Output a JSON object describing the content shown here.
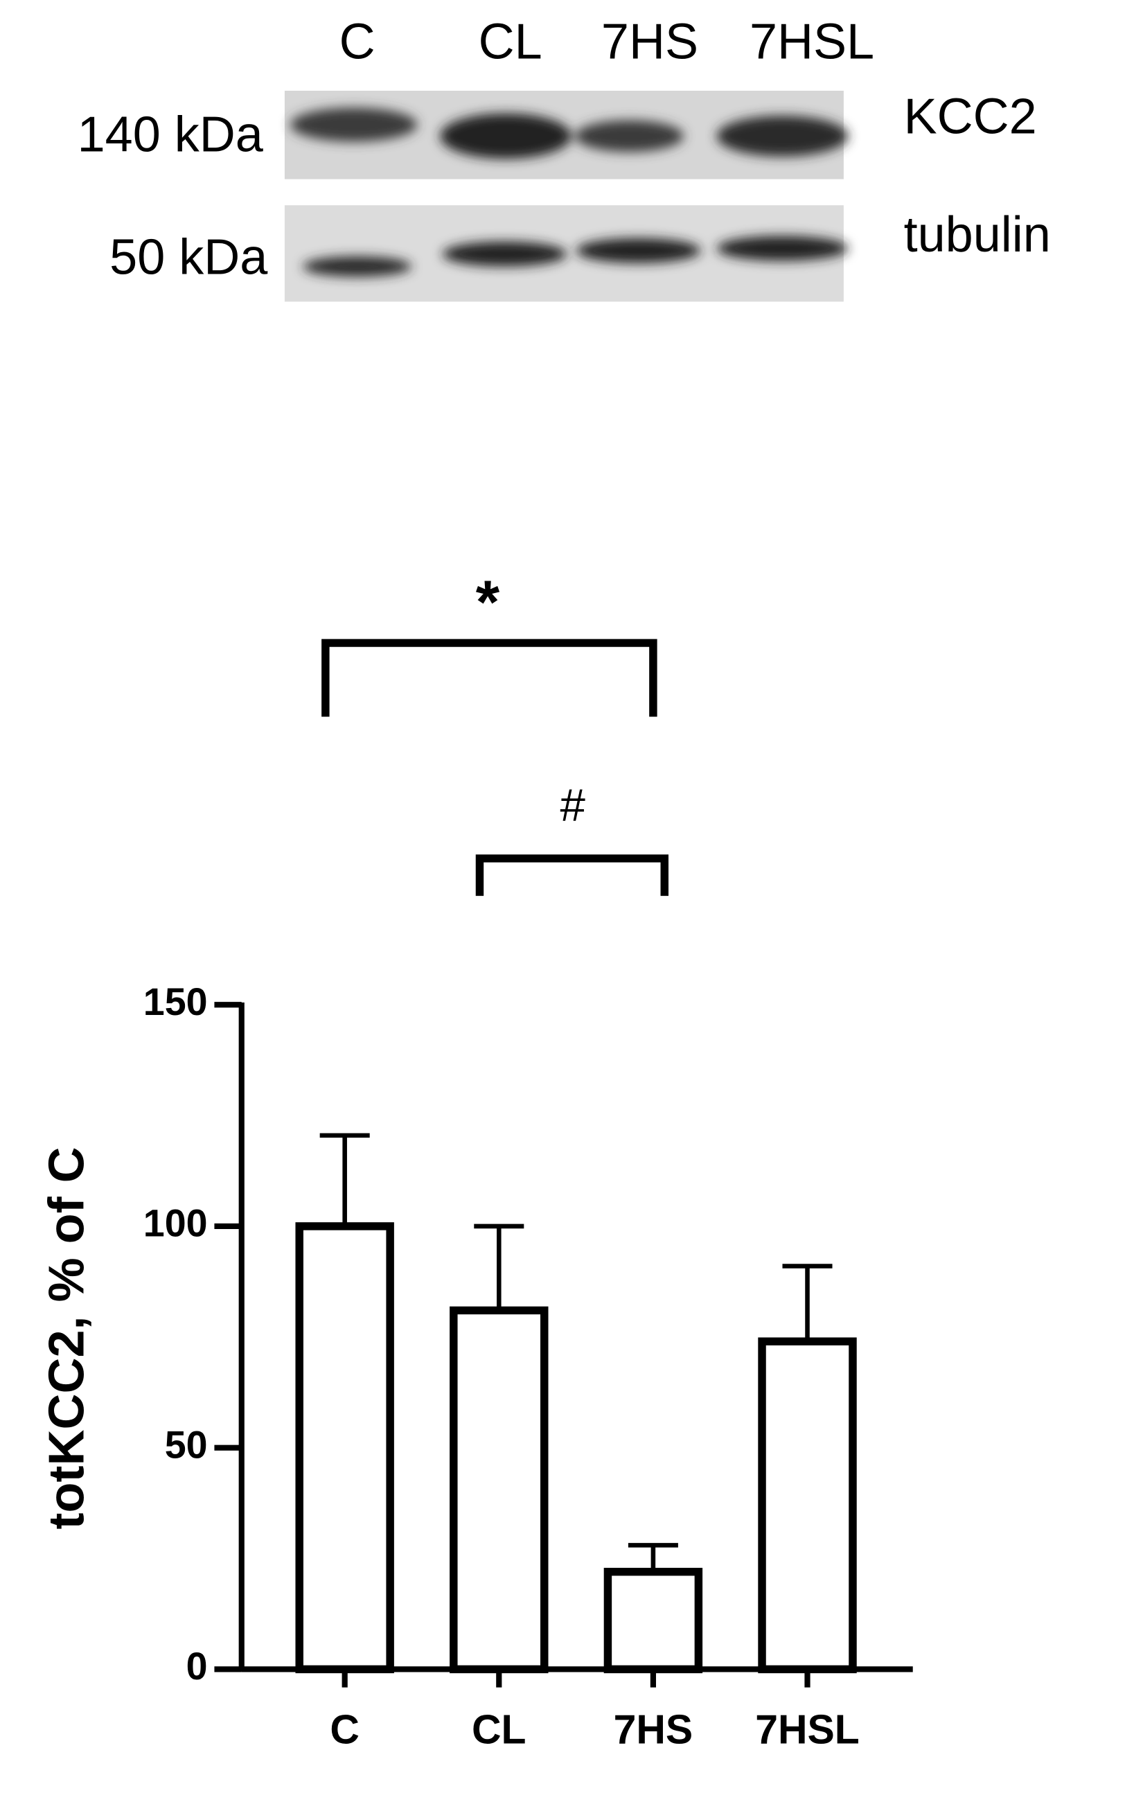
{
  "blot": {
    "lanes": [
      "C",
      "CL",
      "7HS",
      "7HSL"
    ],
    "markers": [
      "140 kDa",
      "50 kDa"
    ],
    "proteins": [
      "KCC2",
      "tubulin"
    ]
  },
  "chart_data": {
    "type": "bar",
    "y_label": "totKCC2, % of C",
    "categories": [
      "C",
      "CL",
      "7HS",
      "7HSL"
    ],
    "series": [
      {
        "values": [
          100,
          81,
          22,
          74
        ],
        "errors": [
          20.5,
          19,
          6,
          17
        ],
        "color": "#ffffff"
      }
    ],
    "ylim": [
      0,
      150
    ],
    "yticks": [
      0,
      50,
      100,
      150
    ],
    "annotations": [
      {
        "label": "*"
      },
      {
        "label": "#"
      }
    ]
  }
}
